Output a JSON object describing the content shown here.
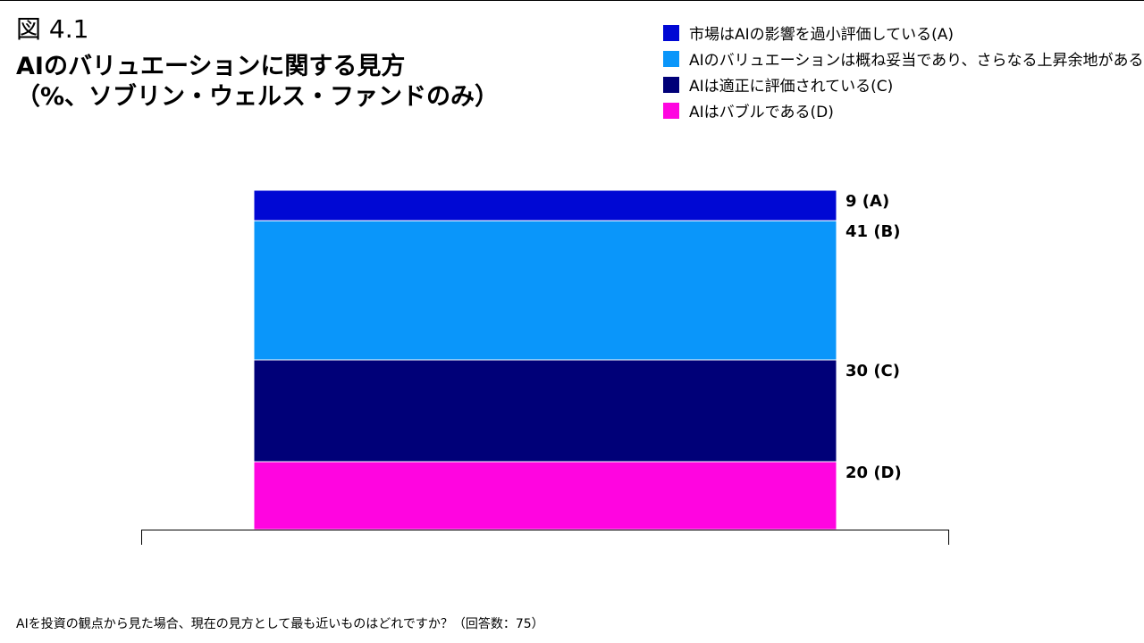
{
  "header": {
    "figure_label": "図 4.1",
    "title_line1": "AIのバリュエーションに関する見方",
    "title_line2": "（%、ソブリン・ウェルス・ファンドのみ）"
  },
  "legend": [
    {
      "label": "市場はAIの影響を過小評価している(A)",
      "color": "#0008d4"
    },
    {
      "label": "AIのバリュエーションは概ね妥当であり、さらなる上昇余地がある(B)",
      "color": "#0a96fa"
    },
    {
      "label": "AIは適正に評価されている(C)",
      "color": "#000078"
    },
    {
      "label": "AIはバブルである(D)",
      "color": "#ff05e0"
    }
  ],
  "footnote": "AIを投資の観点から見た場合、現在の見方として最も近いものはどれですか？（回答数：75）",
  "chart_data": {
    "type": "bar",
    "stacked": true,
    "orientation": "vertical",
    "categories": [
      ""
    ],
    "series": [
      {
        "key": "A",
        "values": [
          9
        ],
        "color": "#0008d4",
        "data_label": "9 (A)"
      },
      {
        "key": "B",
        "values": [
          41
        ],
        "color": "#0a96fa",
        "data_label": "41 (B)"
      },
      {
        "key": "C",
        "values": [
          30
        ],
        "color": "#000078",
        "data_label": "30 (C)"
      },
      {
        "key": "D",
        "values": [
          20
        ],
        "color": "#ff05e0",
        "data_label": "20 (D)"
      }
    ],
    "stack_order_top_to_bottom": [
      "A",
      "B",
      "C",
      "D"
    ],
    "ylim": [
      0,
      100
    ],
    "grid": false,
    "legend_position": "top-right"
  }
}
